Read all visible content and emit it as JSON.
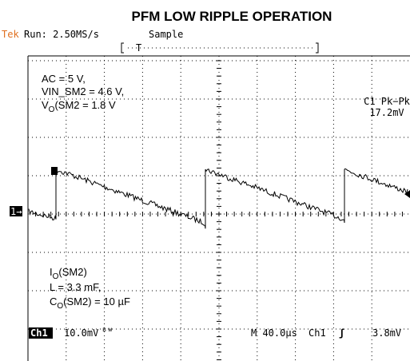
{
  "header": {
    "title": "PFM LOW RIPPLE OPERATION",
    "brand": "Tek",
    "run": "Run: 2.50MS/s",
    "mode": "Sample",
    "trigger_marker": "T"
  },
  "annotations_top": [
    "AC = 5 V,",
    "VIN_SM2 = 4.6 V,"
  ],
  "vo": {
    "main": "V",
    "sub": "O",
    "rest": "(SM2 = 1.8 V"
  },
  "measurement": {
    "label": "C1 Pk−Pk",
    "value": "17.2mV"
  },
  "channel_marker": "1→",
  "io": {
    "main": "I",
    "sub": "O",
    "rest": "(SM2)"
  },
  "inductor": "L = 3.3 mF,",
  "co": {
    "main": "C",
    "sub": "O",
    "rest": "(SM2) = 10 µF"
  },
  "footer": {
    "channel": "Ch1",
    "scale": "10.0mV",
    "bw": "ᴮᵂ",
    "timebase": "M 40.0µs",
    "trig_channel": "Ch1",
    "trig_symbol": "ʃ",
    "trig_level": "3.8mV"
  }
}
